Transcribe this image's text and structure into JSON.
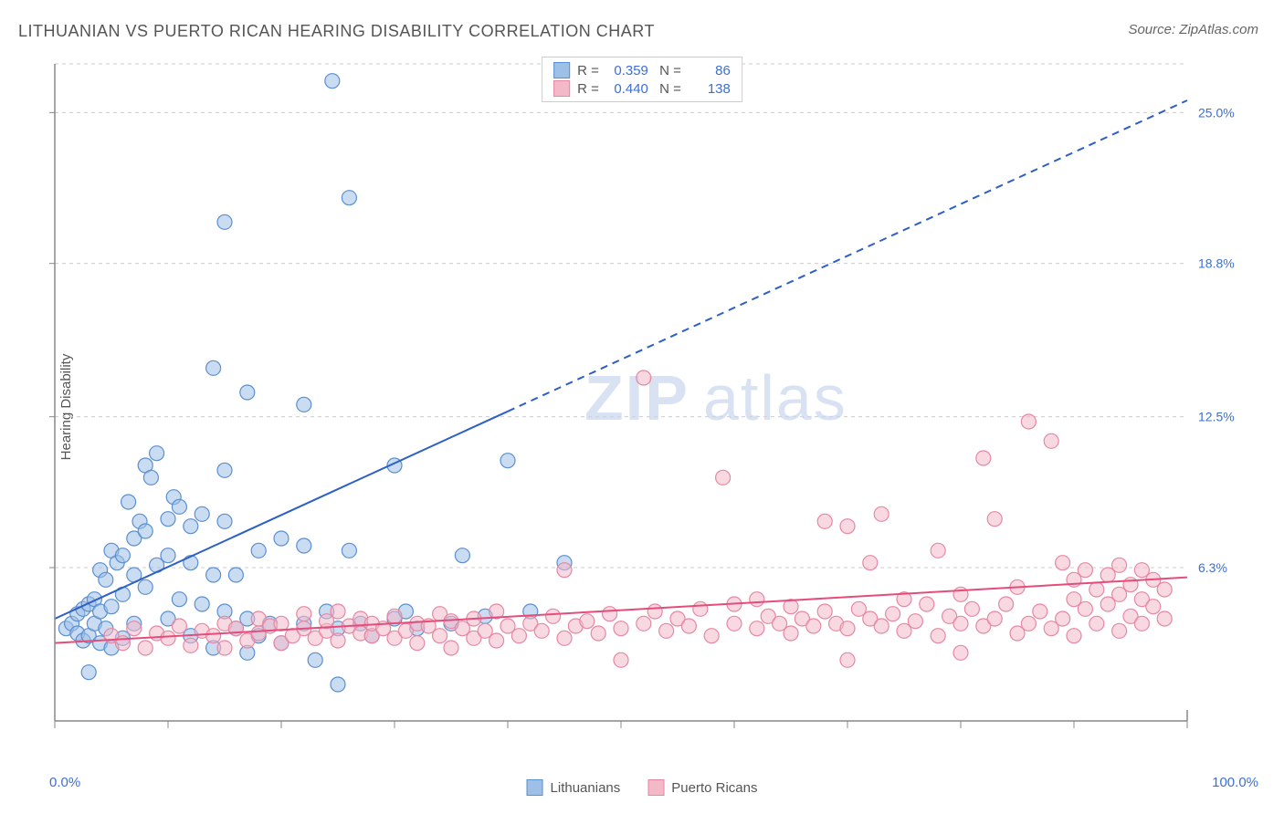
{
  "title": "LITHUANIAN VS PUERTO RICAN HEARING DISABILITY CORRELATION CHART",
  "source": "Source: ZipAtlas.com",
  "y_axis_label": "Hearing Disability",
  "watermark": {
    "part1": "ZIP",
    "part2": "atlas"
  },
  "chart": {
    "type": "scatter",
    "background_color": "#ffffff",
    "grid_color": "#cccccc",
    "axis_color": "#888888",
    "xlim": [
      0,
      100
    ],
    "ylim": [
      0,
      27
    ],
    "x_ticks_labeled": [
      {
        "v": 0,
        "label": "0.0%"
      },
      {
        "v": 100,
        "label": "100.0%"
      }
    ],
    "x_tick_positions": [
      0,
      10,
      20,
      30,
      40,
      50,
      60,
      70,
      80,
      90,
      100
    ],
    "y_ticks": [
      {
        "v": 6.3,
        "label": "6.3%"
      },
      {
        "v": 12.5,
        "label": "12.5%"
      },
      {
        "v": 18.8,
        "label": "18.8%"
      },
      {
        "v": 25.0,
        "label": "25.0%"
      }
    ],
    "y_tick_color": "#3b6fd6",
    "marker_radius": 8,
    "marker_opacity": 0.55,
    "series": [
      {
        "name": "Lithuanians",
        "fill_color": "#9fc0e6",
        "stroke_color": "#5a8fd0",
        "r_value": "0.359",
        "n_value": "86",
        "trend": {
          "x1": 0,
          "y1": 4.2,
          "x2": 100,
          "y2": 25.5,
          "solid_until_x": 40,
          "stroke": "#2d5fc5",
          "width": 2
        },
        "points": [
          [
            1,
            3.8
          ],
          [
            1.5,
            4.0
          ],
          [
            2,
            3.6
          ],
          [
            2,
            4.4
          ],
          [
            2.5,
            3.3
          ],
          [
            2.5,
            4.6
          ],
          [
            3,
            3.5
          ],
          [
            3,
            4.8
          ],
          [
            3,
            2.0
          ],
          [
            3.5,
            4.0
          ],
          [
            3.5,
            5.0
          ],
          [
            4,
            3.2
          ],
          [
            4,
            4.5
          ],
          [
            4,
            6.2
          ],
          [
            4.5,
            3.8
          ],
          [
            4.5,
            5.8
          ],
          [
            5,
            3.0
          ],
          [
            5,
            4.7
          ],
          [
            5,
            7.0
          ],
          [
            5.5,
            6.5
          ],
          [
            6,
            3.4
          ],
          [
            6,
            5.2
          ],
          [
            6,
            6.8
          ],
          [
            6.5,
            9.0
          ],
          [
            7,
            4.0
          ],
          [
            7,
            6.0
          ],
          [
            7,
            7.5
          ],
          [
            7.5,
            8.2
          ],
          [
            8,
            5.5
          ],
          [
            8,
            7.8
          ],
          [
            8,
            10.5
          ],
          [
            8.5,
            10.0
          ],
          [
            9,
            6.4
          ],
          [
            9,
            11.0
          ],
          [
            10,
            4.2
          ],
          [
            10,
            6.8
          ],
          [
            10,
            8.3
          ],
          [
            10.5,
            9.2
          ],
          [
            11,
            5.0
          ],
          [
            11,
            8.8
          ],
          [
            12,
            3.5
          ],
          [
            12,
            6.5
          ],
          [
            12,
            8.0
          ],
          [
            13,
            4.8
          ],
          [
            13,
            8.5
          ],
          [
            14,
            3.0
          ],
          [
            14,
            6.0
          ],
          [
            14,
            14.5
          ],
          [
            15,
            4.5
          ],
          [
            15,
            8.2
          ],
          [
            15,
            10.3
          ],
          [
            15,
            20.5
          ],
          [
            16,
            3.8
          ],
          [
            16,
            6.0
          ],
          [
            17,
            2.8
          ],
          [
            17,
            4.2
          ],
          [
            17,
            13.5
          ],
          [
            18,
            3.5
          ],
          [
            18,
            7.0
          ],
          [
            19,
            4.0
          ],
          [
            20,
            3.2
          ],
          [
            20,
            7.5
          ],
          [
            22,
            4.0
          ],
          [
            22,
            7.2
          ],
          [
            22,
            13.0
          ],
          [
            23,
            2.5
          ],
          [
            24,
            4.5
          ],
          [
            24.5,
            26.3
          ],
          [
            25,
            1.5
          ],
          [
            25,
            3.8
          ],
          [
            26,
            7.0
          ],
          [
            26,
            21.5
          ],
          [
            27,
            4.0
          ],
          [
            28,
            3.5
          ],
          [
            30,
            4.2
          ],
          [
            30,
            10.5
          ],
          [
            31,
            4.5
          ],
          [
            32,
            3.8
          ],
          [
            35,
            4.0
          ],
          [
            36,
            6.8
          ],
          [
            38,
            4.3
          ],
          [
            40,
            10.7
          ],
          [
            42,
            4.5
          ],
          [
            45,
            6.5
          ]
        ]
      },
      {
        "name": "Puerto Ricans",
        "fill_color": "#f4b9c9",
        "stroke_color": "#e687a3",
        "r_value": "0.440",
        "n_value": "138",
        "trend": {
          "x1": 0,
          "y1": 3.2,
          "x2": 100,
          "y2": 5.9,
          "solid_until_x": 100,
          "stroke": "#e64c7a",
          "width": 2
        },
        "points": [
          [
            5,
            3.5
          ],
          [
            6,
            3.2
          ],
          [
            7,
            3.8
          ],
          [
            8,
            3.0
          ],
          [
            9,
            3.6
          ],
          [
            10,
            3.4
          ],
          [
            11,
            3.9
          ],
          [
            12,
            3.1
          ],
          [
            13,
            3.7
          ],
          [
            14,
            3.5
          ],
          [
            15,
            3.0
          ],
          [
            15,
            4.0
          ],
          [
            16,
            3.8
          ],
          [
            17,
            3.3
          ],
          [
            18,
            3.6
          ],
          [
            18,
            4.2
          ],
          [
            19,
            3.9
          ],
          [
            20,
            3.2
          ],
          [
            20,
            4.0
          ],
          [
            21,
            3.5
          ],
          [
            22,
            3.8
          ],
          [
            22,
            4.4
          ],
          [
            23,
            3.4
          ],
          [
            24,
            3.7
          ],
          [
            24,
            4.1
          ],
          [
            25,
            3.3
          ],
          [
            25,
            4.5
          ],
          [
            26,
            3.9
          ],
          [
            27,
            3.6
          ],
          [
            27,
            4.2
          ],
          [
            28,
            3.5
          ],
          [
            28,
            4.0
          ],
          [
            29,
            3.8
          ],
          [
            30,
            3.4
          ],
          [
            30,
            4.3
          ],
          [
            31,
            3.7
          ],
          [
            32,
            3.2
          ],
          [
            32,
            4.0
          ],
          [
            33,
            3.9
          ],
          [
            34,
            3.5
          ],
          [
            34,
            4.4
          ],
          [
            35,
            3.0
          ],
          [
            35,
            4.1
          ],
          [
            36,
            3.8
          ],
          [
            37,
            3.4
          ],
          [
            37,
            4.2
          ],
          [
            38,
            3.7
          ],
          [
            39,
            3.3
          ],
          [
            39,
            4.5
          ],
          [
            40,
            3.9
          ],
          [
            41,
            3.5
          ],
          [
            42,
            4.0
          ],
          [
            43,
            3.7
          ],
          [
            44,
            4.3
          ],
          [
            45,
            3.4
          ],
          [
            45,
            6.2
          ],
          [
            46,
            3.9
          ],
          [
            47,
            4.1
          ],
          [
            48,
            3.6
          ],
          [
            49,
            4.4
          ],
          [
            50,
            3.8
          ],
          [
            50,
            2.5
          ],
          [
            52,
            4.0
          ],
          [
            52,
            14.1
          ],
          [
            53,
            4.5
          ],
          [
            54,
            3.7
          ],
          [
            55,
            4.2
          ],
          [
            56,
            3.9
          ],
          [
            57,
            4.6
          ],
          [
            58,
            3.5
          ],
          [
            59,
            10.0
          ],
          [
            60,
            4.0
          ],
          [
            60,
            4.8
          ],
          [
            62,
            3.8
          ],
          [
            62,
            5.0
          ],
          [
            63,
            4.3
          ],
          [
            64,
            4.0
          ],
          [
            65,
            3.6
          ],
          [
            65,
            4.7
          ],
          [
            66,
            4.2
          ],
          [
            67,
            3.9
          ],
          [
            68,
            4.5
          ],
          [
            68,
            8.2
          ],
          [
            69,
            4.0
          ],
          [
            70,
            2.5
          ],
          [
            70,
            3.8
          ],
          [
            70,
            8.0
          ],
          [
            71,
            4.6
          ],
          [
            72,
            4.2
          ],
          [
            72,
            6.5
          ],
          [
            73,
            3.9
          ],
          [
            73,
            8.5
          ],
          [
            74,
            4.4
          ],
          [
            75,
            3.7
          ],
          [
            75,
            5.0
          ],
          [
            76,
            4.1
          ],
          [
            77,
            4.8
          ],
          [
            78,
            3.5
          ],
          [
            78,
            7.0
          ],
          [
            79,
            4.3
          ],
          [
            80,
            2.8
          ],
          [
            80,
            4.0
          ],
          [
            80,
            5.2
          ],
          [
            81,
            4.6
          ],
          [
            82,
            3.9
          ],
          [
            82,
            10.8
          ],
          [
            83,
            4.2
          ],
          [
            83,
            8.3
          ],
          [
            84,
            4.8
          ],
          [
            85,
            3.6
          ],
          [
            85,
            5.5
          ],
          [
            86,
            4.0
          ],
          [
            86,
            12.3
          ],
          [
            87,
            4.5
          ],
          [
            88,
            3.8
          ],
          [
            88,
            11.5
          ],
          [
            89,
            4.2
          ],
          [
            89,
            6.5
          ],
          [
            90,
            3.5
          ],
          [
            90,
            5.0
          ],
          [
            90,
            5.8
          ],
          [
            91,
            4.6
          ],
          [
            91,
            6.2
          ],
          [
            92,
            4.0
          ],
          [
            92,
            5.4
          ],
          [
            93,
            4.8
          ],
          [
            93,
            6.0
          ],
          [
            94,
            3.7
          ],
          [
            94,
            5.2
          ],
          [
            94,
            6.4
          ],
          [
            95,
            4.3
          ],
          [
            95,
            5.6
          ],
          [
            96,
            4.0
          ],
          [
            96,
            5.0
          ],
          [
            96,
            6.2
          ],
          [
            97,
            4.7
          ],
          [
            97,
            5.8
          ],
          [
            98,
            4.2
          ],
          [
            98,
            5.4
          ]
        ]
      }
    ]
  },
  "legend_bottom": [
    {
      "label": "Lithuanians",
      "fill": "#9fc0e6",
      "stroke": "#5a8fd0"
    },
    {
      "label": "Puerto Ricans",
      "fill": "#f4b9c9",
      "stroke": "#e687a3"
    }
  ]
}
